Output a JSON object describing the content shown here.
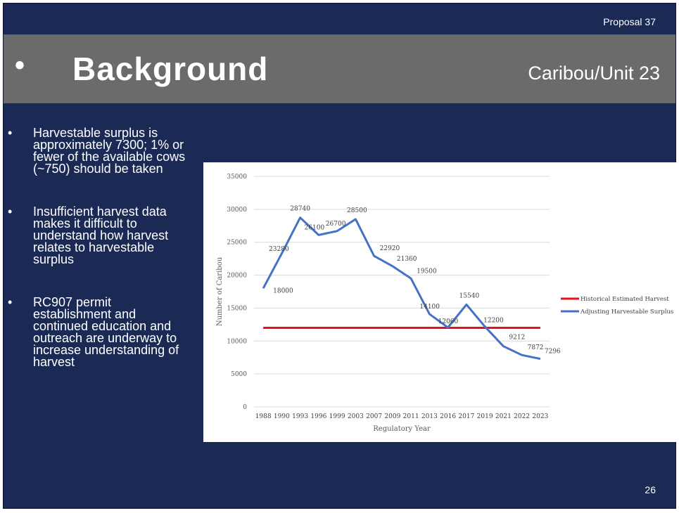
{
  "header": {
    "proposal": "Proposal 37",
    "bullet": "•",
    "title": "Background",
    "subtitle": "Caribou/Unit 23"
  },
  "bullets": [
    "Harvestable surplus is approximately 7300; 1% or fewer of the available cows (~750) should be taken",
    "Insufficient harvest data makes it difficult to understand how harvest relates to harvestable surplus",
    "RC907 permit establishment and continued education and outreach are underway to increase understanding of harvest"
  ],
  "footer": {
    "page_number": "26"
  },
  "colors": {
    "background": "#1b2a55",
    "title_band": "#6b6b6b",
    "historical": "#e8101c",
    "surplus": "#4472c4"
  },
  "chart_data": {
    "type": "line",
    "title": "",
    "xlabel": "Regulatory Year",
    "ylabel": "Number of Caribou",
    "categories": [
      "1988",
      "1990",
      "1993",
      "1996",
      "1999",
      "2003",
      "2007",
      "2009",
      "2011",
      "2013",
      "2016",
      "2017",
      "2019",
      "2021",
      "2022",
      "2023"
    ],
    "ylim": [
      0,
      35000
    ],
    "yticks": [
      0,
      5000,
      10000,
      15000,
      20000,
      25000,
      30000,
      35000
    ],
    "grid": true,
    "legend_position": "right",
    "series": [
      {
        "name": "Historical Estimated Harvest",
        "color": "#e8101c",
        "values": [
          12000,
          12000,
          12000,
          12000,
          12000,
          12000,
          12000,
          12000,
          12000,
          12000,
          12000,
          12000,
          12000,
          12000,
          12000,
          12000
        ],
        "labels": false
      },
      {
        "name": "Adjusting Harvestable Surplus",
        "color": "#4472c4",
        "values": [
          18000,
          23280,
          28740,
          26100,
          26700,
          28500,
          22920,
          21360,
          19500,
          14100,
          12060,
          15540,
          12200,
          9212,
          7872,
          7296
        ],
        "labels": true
      }
    ]
  }
}
